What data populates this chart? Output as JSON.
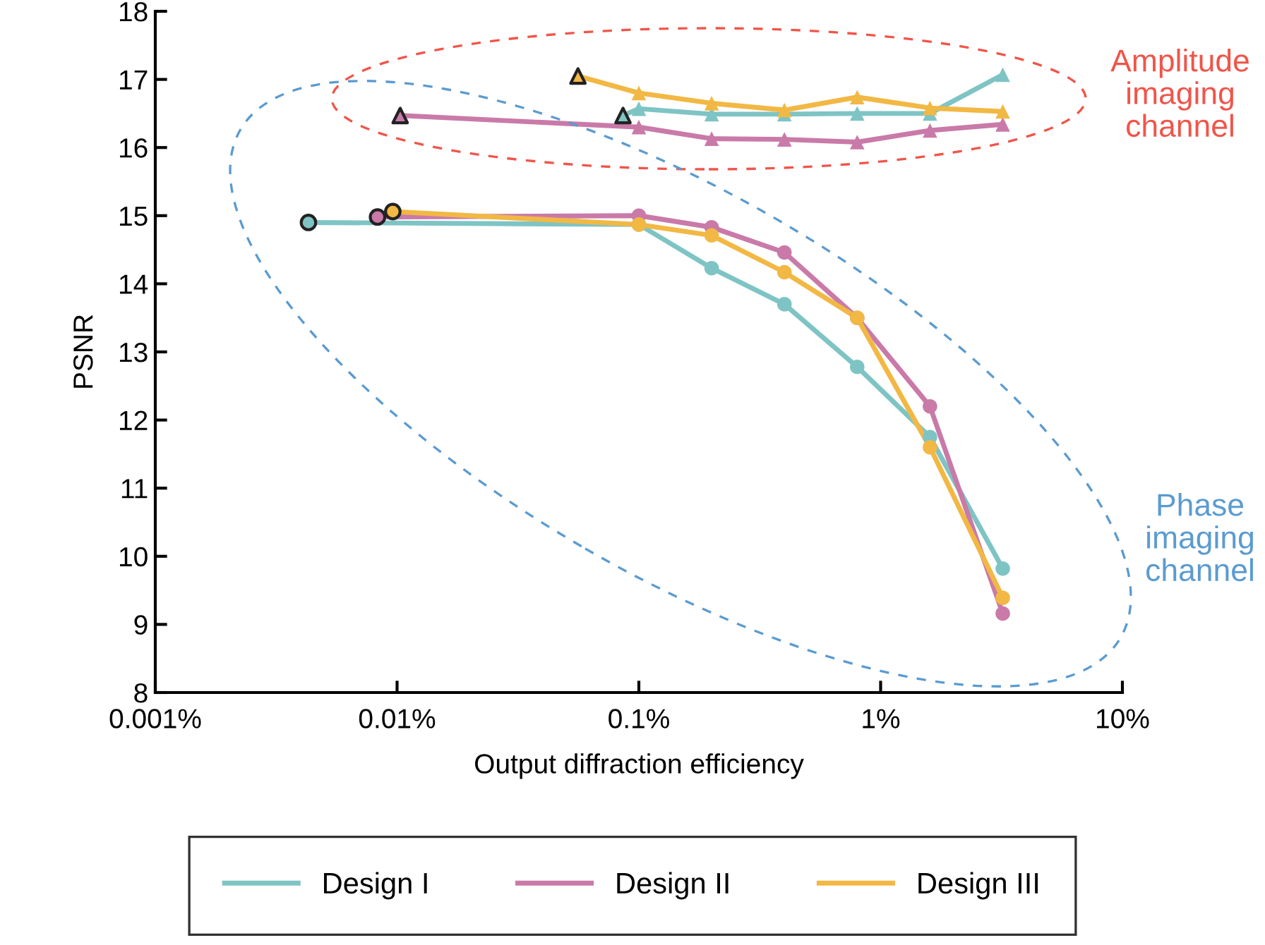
{
  "chart_data": {
    "type": "line",
    "xlabel": "Output diffraction efficiency",
    "ylabel": "PSNR",
    "log": "x",
    "xlim": [
      0.001,
      10
    ],
    "xticks": [
      {
        "value": 0.001,
        "label": "0.001%"
      },
      {
        "value": 0.01,
        "label": "0.01%"
      },
      {
        "value": 0.1,
        "label": "0.1%"
      },
      {
        "value": 1,
        "label": "1%"
      },
      {
        "value": 10,
        "label": "10%"
      }
    ],
    "ylim": [
      8,
      18
    ],
    "yticks": [
      8,
      9,
      10,
      11,
      12,
      13,
      14,
      15,
      16,
      17,
      18
    ],
    "grid": false,
    "legend": "bottom",
    "line_style": "solid",
    "series": [
      {
        "name": "Design I",
        "color": "#7fc4c4",
        "marker": "circle",
        "x": [
          0.0043,
          0.1,
          0.2,
          0.4,
          0.8,
          1.6,
          3.2
        ],
        "values": [
          14.9,
          14.87,
          14.23,
          13.7,
          12.78,
          11.75,
          9.82
        ]
      },
      {
        "name": "Design II",
        "color": "#c97aa8",
        "marker": "circle",
        "x": [
          0.0083,
          0.1,
          0.2,
          0.4,
          0.8,
          1.6,
          3.2
        ],
        "values": [
          14.98,
          15.0,
          14.83,
          14.46,
          13.5,
          12.2,
          9.16
        ]
      },
      {
        "name": "Design III",
        "color": "#f2b844",
        "marker": "circle",
        "x": [
          0.0096,
          0.1,
          0.2,
          0.4,
          0.8,
          1.6,
          3.2
        ],
        "values": [
          15.06,
          14.87,
          14.71,
          14.17,
          13.5,
          11.6,
          9.39
        ]
      },
      {
        "color": "#7fc4c4",
        "marker": "triangle",
        "x": [
          0.086,
          0.1,
          0.2,
          0.4,
          0.8,
          1.6,
          3.2
        ],
        "values": [
          16.47,
          16.57,
          16.49,
          16.49,
          16.5,
          16.5,
          17.07
        ]
      },
      {
        "color": "#c97aa8",
        "marker": "triangle",
        "x": [
          0.0103,
          0.1,
          0.2,
          0.4,
          0.8,
          1.6,
          3.2
        ],
        "values": [
          16.47,
          16.3,
          16.13,
          16.12,
          16.08,
          16.25,
          16.34
        ]
      },
      {
        "color": "#f2b844",
        "marker": "triangle",
        "x": [
          0.056,
          0.1,
          0.2,
          0.4,
          0.8,
          1.6,
          3.2
        ],
        "values": [
          17.05,
          16.8,
          16.65,
          16.55,
          16.74,
          16.58,
          16.53
        ]
      }
    ],
    "annotations": [
      "Amplitude\nimaging\nchannel",
      "Phase\nimaging\nchannel"
    ]
  }
}
